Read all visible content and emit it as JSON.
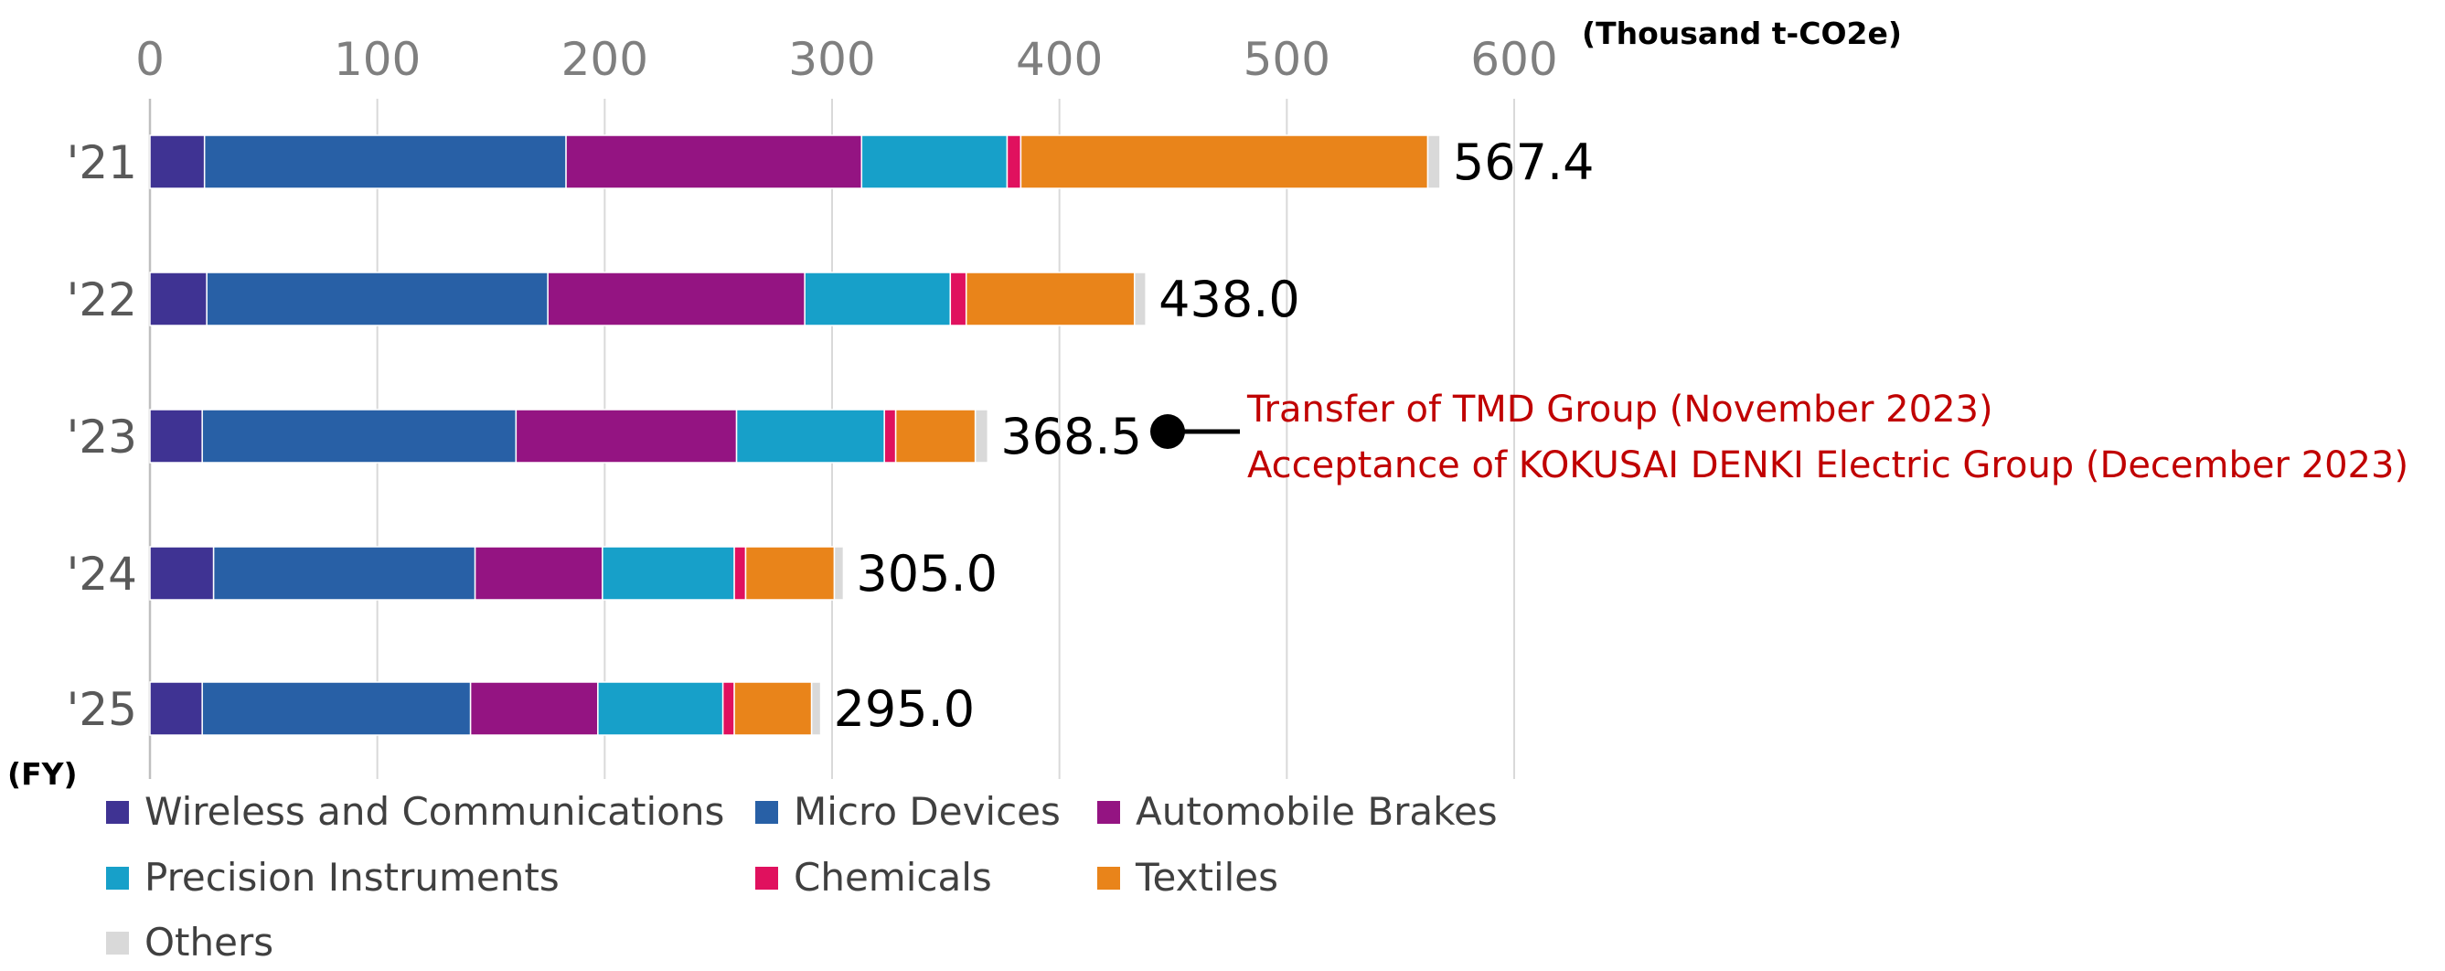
{
  "chart_data": {
    "type": "bar",
    "orientation": "horizontal",
    "stacked": true,
    "unit_label": "(Thousand t-CO2e)",
    "y_axis_label": "(FY)",
    "categories": [
      "'21",
      "'22",
      "'23",
      "'24",
      "'25"
    ],
    "xlim": [
      0,
      600
    ],
    "x_ticks": [
      "0",
      "100",
      "200",
      "300",
      "400",
      "500",
      "600"
    ],
    "x_tick_values": [
      0,
      100,
      200,
      300,
      400,
      500,
      600
    ],
    "grid": true,
    "legend_position": "bottom",
    "series": [
      {
        "name": "Wireless and Communications",
        "color": "#3f3393",
        "values": [
          24,
          25,
          23,
          28,
          23
        ]
      },
      {
        "name": "Micro Devices",
        "color": "#2860a6",
        "values": [
          159,
          150,
          138,
          115,
          118
        ]
      },
      {
        "name": "Automobile Brakes",
        "color": "#941482",
        "values": [
          130,
          113,
          97,
          56,
          56
        ]
      },
      {
        "name": "Precision Instruments",
        "color": "#17a0c9",
        "values": [
          64,
          64,
          65,
          58,
          55
        ]
      },
      {
        "name": "Chemicals",
        "color": "#e0115e",
        "values": [
          6,
          7,
          5,
          5,
          5
        ]
      },
      {
        "name": "Textiles",
        "color": "#e9841a",
        "values": [
          179,
          74,
          35,
          39,
          34
        ]
      },
      {
        "name": "Others",
        "color": "#d9d9d9",
        "values": [
          5.4,
          5,
          5.5,
          4,
          4
        ]
      }
    ],
    "totals": [
      "567.4",
      "438.0",
      "368.5",
      "305.0",
      "295.0"
    ],
    "annotation": {
      "category": "'23",
      "lines": [
        "Transfer of TMD Group (November 2023)",
        "Acceptance of KOKUSAI DENKI Electric Group (December 2023)"
      ],
      "color": "#c00000"
    }
  }
}
